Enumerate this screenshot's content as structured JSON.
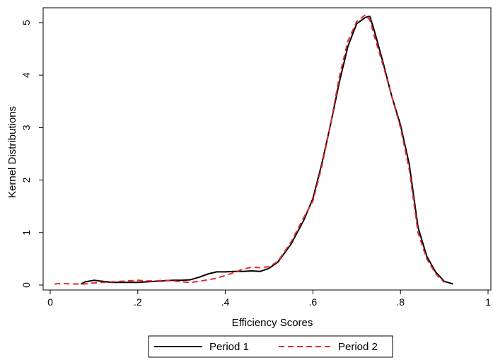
{
  "chart_data": {
    "type": "line",
    "title": "",
    "xlabel": "Efficiency Scores",
    "ylabel": "Kernel Distributions",
    "xlim": [
      0,
      1
    ],
    "ylim": [
      0,
      5.25
    ],
    "x_ticks": [
      0,
      0.2,
      0.4,
      0.6,
      0.8,
      1
    ],
    "x_tick_labels": [
      "0",
      ".2",
      ".4",
      ".6",
      ".8",
      "1"
    ],
    "y_ticks": [
      0,
      1,
      2,
      3,
      4,
      5
    ],
    "y_tick_labels": [
      "0",
      "1",
      "2",
      "3",
      "4",
      "5"
    ],
    "grid": false,
    "legend_position": "bottom",
    "series": [
      {
        "name": "Period 1",
        "color": "#000000",
        "style": "solid",
        "x": [
          0.07,
          0.08,
          0.1,
          0.12,
          0.14,
          0.16,
          0.18,
          0.2,
          0.22,
          0.24,
          0.26,
          0.28,
          0.3,
          0.32,
          0.34,
          0.36,
          0.38,
          0.4,
          0.42,
          0.44,
          0.46,
          0.48,
          0.5,
          0.52,
          0.55,
          0.58,
          0.6,
          0.62,
          0.64,
          0.66,
          0.68,
          0.7,
          0.72,
          0.73,
          0.74,
          0.76,
          0.78,
          0.8,
          0.82,
          0.84,
          0.86,
          0.88,
          0.9,
          0.92
        ],
        "y": [
          0.02,
          0.06,
          0.09,
          0.07,
          0.05,
          0.05,
          0.05,
          0.05,
          0.06,
          0.07,
          0.08,
          0.09,
          0.09,
          0.1,
          0.15,
          0.21,
          0.25,
          0.25,
          0.26,
          0.26,
          0.27,
          0.26,
          0.32,
          0.44,
          0.78,
          1.25,
          1.65,
          2.3,
          3.05,
          3.85,
          4.55,
          4.98,
          5.1,
          5.12,
          4.85,
          4.25,
          3.6,
          3.05,
          2.3,
          1.1,
          0.55,
          0.25,
          0.07,
          0.02
        ]
      },
      {
        "name": "Period 2",
        "color": "#e8272a",
        "style": "dashed",
        "x": [
          0.01,
          0.03,
          0.05,
          0.08,
          0.1,
          0.12,
          0.14,
          0.16,
          0.18,
          0.2,
          0.22,
          0.24,
          0.26,
          0.28,
          0.3,
          0.32,
          0.34,
          0.36,
          0.38,
          0.4,
          0.42,
          0.44,
          0.46,
          0.48,
          0.5,
          0.52,
          0.55,
          0.58,
          0.6,
          0.62,
          0.64,
          0.66,
          0.68,
          0.7,
          0.72,
          0.73,
          0.74,
          0.76,
          0.78,
          0.8,
          0.82,
          0.84,
          0.86,
          0.88,
          0.9
        ],
        "y": [
          0.02,
          0.03,
          0.02,
          0.02,
          0.04,
          0.05,
          0.06,
          0.07,
          0.08,
          0.09,
          0.08,
          0.08,
          0.09,
          0.08,
          0.06,
          0.05,
          0.07,
          0.1,
          0.13,
          0.18,
          0.24,
          0.3,
          0.34,
          0.33,
          0.35,
          0.45,
          0.82,
          1.3,
          1.6,
          2.25,
          3.05,
          3.95,
          4.65,
          5.02,
          5.15,
          5.05,
          4.75,
          4.2,
          3.6,
          3.0,
          2.2,
          1.0,
          0.5,
          0.22,
          0.05
        ]
      }
    ]
  }
}
